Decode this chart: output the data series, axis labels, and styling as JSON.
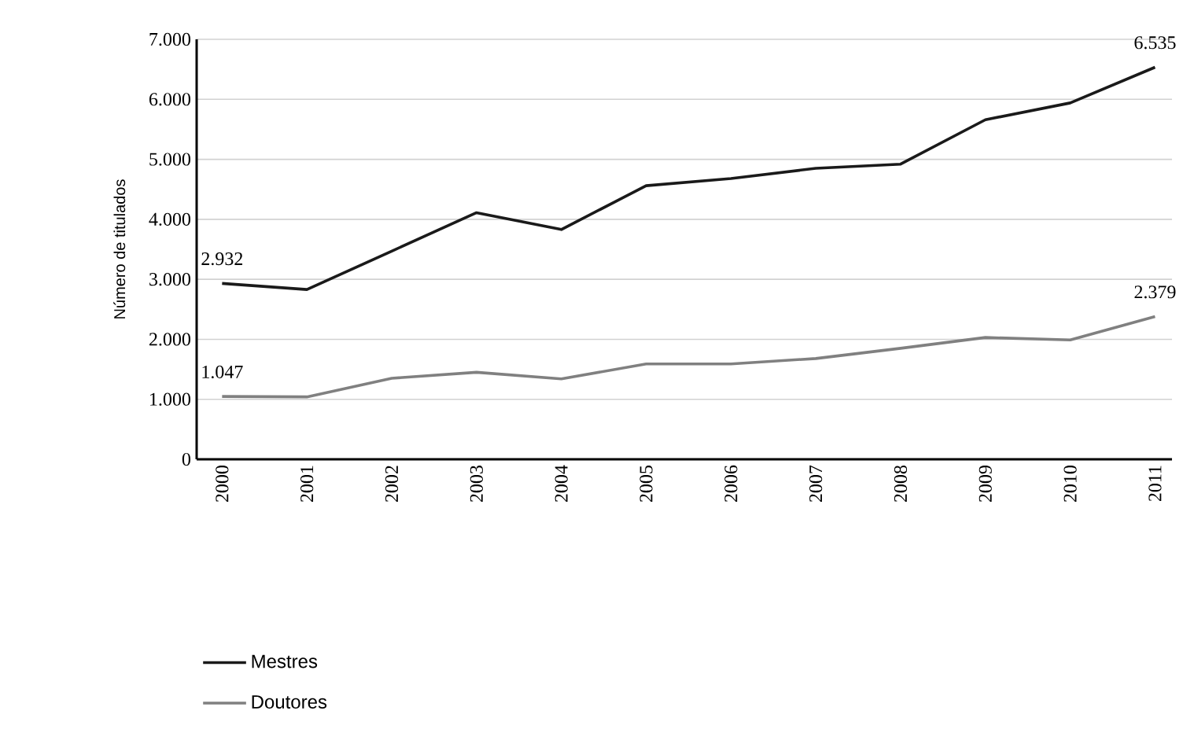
{
  "chart_data": {
    "type": "line",
    "ylabel": "Número de titulados",
    "categories": [
      "2000",
      "2001",
      "2002",
      "2003",
      "2004",
      "2005",
      "2006",
      "2007",
      "2008",
      "2009",
      "2010",
      "2011"
    ],
    "series": [
      {
        "name": "Mestres",
        "color": "#1a1a1a",
        "values": [
          2932,
          2830,
          3470,
          4110,
          3830,
          4560,
          4680,
          4850,
          4920,
          5660,
          5940,
          6535
        ],
        "value_labels": [
          "2.932",
          null,
          null,
          null,
          null,
          null,
          null,
          null,
          null,
          null,
          null,
          "6.535"
        ]
      },
      {
        "name": "Doutores",
        "color": "#808080",
        "values": [
          1047,
          1040,
          1350,
          1450,
          1340,
          1590,
          1590,
          1680,
          1850,
          2030,
          1990,
          2379
        ],
        "value_labels": [
          "1.047",
          null,
          null,
          null,
          null,
          null,
          null,
          null,
          null,
          null,
          null,
          "2.379"
        ]
      }
    ],
    "ylim": [
      0,
      7000
    ],
    "yticks": [
      {
        "value": 0,
        "label": "0"
      },
      {
        "value": 1000,
        "label": "1.000"
      },
      {
        "value": 2000,
        "label": "2.000"
      },
      {
        "value": 3000,
        "label": "3.000"
      },
      {
        "value": 4000,
        "label": "4.000"
      },
      {
        "value": 5000,
        "label": "5.000"
      },
      {
        "value": 6000,
        "label": "6.000"
      },
      {
        "value": 7000,
        "label": "7.000"
      }
    ],
    "grid": "y",
    "legend": "bottom",
    "marker": "none",
    "line_style": "solid"
  }
}
